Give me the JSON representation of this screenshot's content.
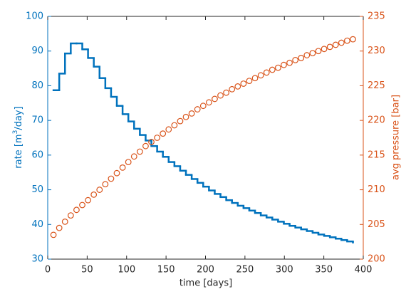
{
  "chart_data": {
    "type": "stairs-scatter",
    "xlabel": "time [days]",
    "ylabel": [
      "rate [m",
      "3",
      "/day]"
    ],
    "y2label": "avg pressure [bar]",
    "x": [
      7.3,
      14.6,
      21.9,
      29.2,
      36.5,
      43.8,
      51.1,
      58.4,
      65.7,
      73,
      80.3,
      87.6,
      94.9,
      102.2,
      109.5,
      116.8,
      124.1,
      131.4,
      138.7,
      146,
      153.3,
      160.6,
      167.9,
      175.2,
      182.5,
      189.8,
      197.1,
      204.4,
      211.7,
      219,
      226.3,
      233.6,
      240.9,
      248.2,
      255.5,
      262.8,
      270.1,
      277.4,
      284.7,
      292,
      299.3,
      306.6,
      313.9,
      321.2,
      328.5,
      335.8,
      343.1,
      350.4,
      357.7,
      365,
      372.3,
      379.6,
      386.9
    ],
    "series": [
      {
        "type": "stairs",
        "axis": "y",
        "color": "#0072bd",
        "values": [
          78.7,
          83.5,
          89.3,
          92.2,
          92.2,
          90.5,
          88,
          85.5,
          82.2,
          79.3,
          76.8,
          74.2,
          71.8,
          69.7,
          67.6,
          65.8,
          64.2,
          62.6,
          61,
          59.5,
          58,
          56.8,
          55.5,
          54.3,
          53.1,
          52,
          50.9,
          49.8,
          48.8,
          47.9,
          47,
          46.2,
          45.4,
          44.7,
          44,
          43.3,
          42.6,
          42,
          41.4,
          40.8,
          40.2,
          39.6,
          39.1,
          38.6,
          38.1,
          37.6,
          37.1,
          36.7,
          36.3,
          35.9,
          35.5,
          35.1,
          34.8
        ]
      },
      {
        "type": "scatter",
        "axis": "y2",
        "color": "#d95319",
        "values": [
          203.5,
          204.5,
          205.4,
          206.3,
          207.1,
          207.8,
          208.5,
          209.3,
          210.0,
          210.8,
          211.6,
          212.4,
          213.2,
          214.0,
          214.8,
          215.5,
          216.3,
          216.9,
          217.5,
          218.1,
          218.7,
          219.3,
          219.9,
          220.5,
          221.0,
          221.6,
          222.1,
          222.6,
          223.1,
          223.6,
          224.0,
          224.5,
          224.9,
          225.3,
          225.7,
          226.1,
          226.5,
          226.9,
          227.3,
          227.6,
          228.0,
          228.3,
          228.7,
          229.0,
          229.4,
          229.7,
          230.0,
          230.3,
          230.6,
          230.9,
          231.2,
          231.5,
          231.7
        ]
      }
    ],
    "xlim": [
      0,
      400
    ],
    "xticks": [
      0,
      50,
      100,
      150,
      200,
      250,
      300,
      350,
      400
    ],
    "ylim": [
      30,
      100
    ],
    "yticks": [
      30,
      40,
      50,
      60,
      70,
      80,
      90,
      100
    ],
    "y2lim": [
      200,
      235
    ],
    "y2ticks": [
      200,
      205,
      210,
      215,
      220,
      225,
      230,
      235
    ]
  }
}
